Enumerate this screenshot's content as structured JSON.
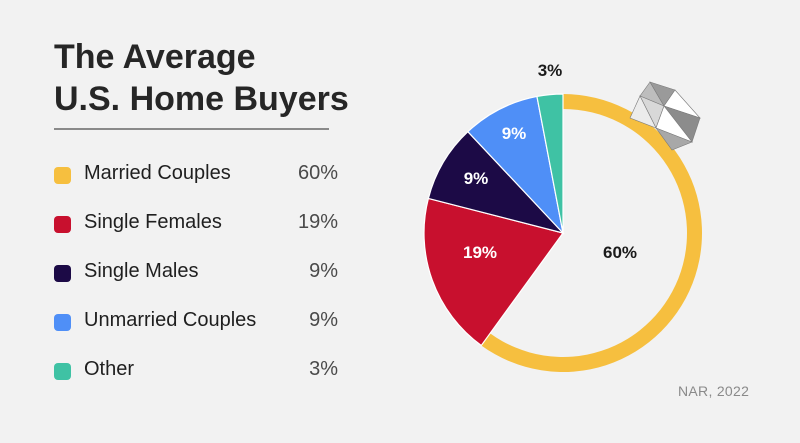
{
  "title": {
    "line1": "The Average",
    "line2": "U.S. Home Buyers"
  },
  "source": "NAR, 2022",
  "chart_data": {
    "type": "pie",
    "categories": [
      "Married Couples",
      "Single Females",
      "Single Males",
      "Unmarried Couples",
      "Other"
    ],
    "values": [
      60,
      19,
      9,
      9,
      3
    ],
    "value_labels": [
      "60%",
      "19%",
      "9%",
      "9%",
      "3%"
    ],
    "colors": [
      "#f6bf3f",
      "#c8102e",
      "#1c0a46",
      "#4f8ff7",
      "#3fc2a4"
    ],
    "label_colors": [
      "#1b1b1b",
      "#ffffff",
      "#ffffff",
      "#ffffff",
      "#1b1b1b"
    ],
    "legend_position": "left",
    "title": "The Average U.S. Home Buyers"
  },
  "decorations": {
    "married_slice_style": "ring-with-diamond",
    "diamond_icon": "diamond-icon"
  }
}
